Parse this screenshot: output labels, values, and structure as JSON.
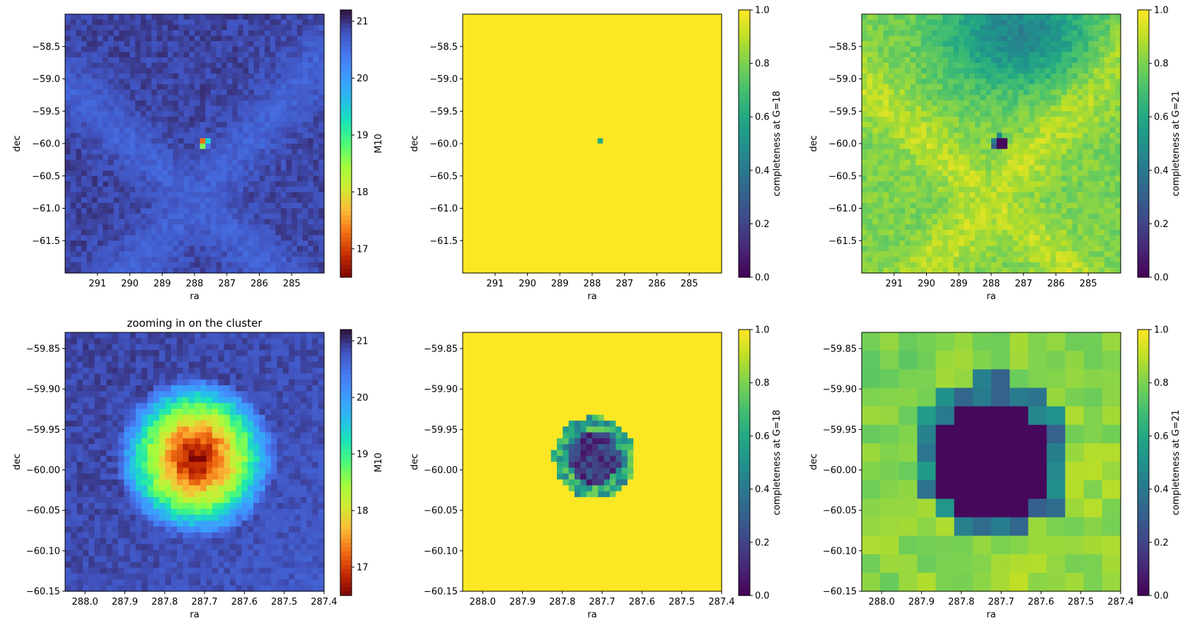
{
  "chart_data": [
    {
      "type": "heatmap",
      "title": "",
      "xlabel": "ra",
      "ylabel": "dec",
      "xlim": [
        292.0,
        284.0
      ],
      "ylim": [
        -62.0,
        -58.0
      ],
      "xticks": [
        {
          "v": 291,
          "label": "291"
        },
        {
          "v": 290,
          "label": "290"
        },
        {
          "v": 289,
          "label": "289"
        },
        {
          "v": 288,
          "label": "288"
        },
        {
          "v": 287,
          "label": "287"
        },
        {
          "v": 286,
          "label": "286"
        },
        {
          "v": 285,
          "label": "285"
        }
      ],
      "yticks": [
        {
          "v": -58.5,
          "label": "−58.5"
        },
        {
          "v": -59.0,
          "label": "−59.0"
        },
        {
          "v": -59.5,
          "label": "−59.5"
        },
        {
          "v": -60.0,
          "label": "−60.0"
        },
        {
          "v": -60.5,
          "label": "−60.5"
        },
        {
          "v": -61.0,
          "label": "−61.0"
        },
        {
          "v": -61.5,
          "label": "−61.5"
        }
      ],
      "colorbar": {
        "label": "M10",
        "colormap": "turbo_r",
        "range": [
          16.5,
          21.2
        ],
        "ticks": [
          {
            "v": 17,
            "label": "17"
          },
          {
            "v": 18,
            "label": "18"
          },
          {
            "v": 19,
            "label": "19"
          },
          {
            "v": 20,
            "label": "20"
          },
          {
            "v": 21,
            "label": "21"
          }
        ]
      },
      "field": {
        "kind": "m10",
        "grid": 48,
        "cluster_ra": 287.72,
        "cluster_dec": -59.985,
        "cluster_radius_deg": 0.06,
        "background": 20.9
      }
    },
    {
      "type": "heatmap",
      "title": "",
      "xlabel": "ra",
      "ylabel": "dec",
      "xlim": [
        292.0,
        284.0
      ],
      "ylim": [
        -62.0,
        -58.0
      ],
      "xticks": [
        {
          "v": 291,
          "label": "291"
        },
        {
          "v": 290,
          "label": "290"
        },
        {
          "v": 289,
          "label": "289"
        },
        {
          "v": 288,
          "label": "288"
        },
        {
          "v": 287,
          "label": "287"
        },
        {
          "v": 286,
          "label": "286"
        },
        {
          "v": 285,
          "label": "285"
        }
      ],
      "yticks": [
        {
          "v": -58.5,
          "label": "−58.5"
        },
        {
          "v": -59.0,
          "label": "−59.0"
        },
        {
          "v": -59.5,
          "label": "−59.5"
        },
        {
          "v": -60.0,
          "label": "−60.0"
        },
        {
          "v": -60.5,
          "label": "−60.5"
        },
        {
          "v": -61.0,
          "label": "−61.0"
        },
        {
          "v": -61.5,
          "label": "−61.5"
        }
      ],
      "colorbar": {
        "label": "completeness at G=18",
        "colormap": "viridis",
        "range": [
          0.0,
          1.0
        ],
        "ticks": [
          {
            "v": 0.0,
            "label": "0.0"
          },
          {
            "v": 0.2,
            "label": "0.2"
          },
          {
            "v": 0.4,
            "label": "0.4"
          },
          {
            "v": 0.6,
            "label": "0.6"
          },
          {
            "v": 0.8,
            "label": "0.8"
          },
          {
            "v": 1.0,
            "label": "1.0"
          }
        ]
      },
      "field": {
        "kind": "g18",
        "grid": 48,
        "cluster_ra": 287.72,
        "cluster_dec": -59.985,
        "cluster_radius_deg": 0.03,
        "background": 1.0
      }
    },
    {
      "type": "heatmap",
      "title": "",
      "xlabel": "ra",
      "ylabel": "dec",
      "xlim": [
        292.0,
        284.0
      ],
      "ylim": [
        -62.0,
        -58.0
      ],
      "xticks": [
        {
          "v": 291,
          "label": "291"
        },
        {
          "v": 290,
          "label": "290"
        },
        {
          "v": 289,
          "label": "289"
        },
        {
          "v": 288,
          "label": "288"
        },
        {
          "v": 287,
          "label": "287"
        },
        {
          "v": 286,
          "label": "286"
        },
        {
          "v": 285,
          "label": "285"
        }
      ],
      "yticks": [
        {
          "v": -58.5,
          "label": "−58.5"
        },
        {
          "v": -59.0,
          "label": "−59.0"
        },
        {
          "v": -59.5,
          "label": "−59.5"
        },
        {
          "v": -60.0,
          "label": "−60.0"
        },
        {
          "v": -60.5,
          "label": "−60.5"
        },
        {
          "v": -61.0,
          "label": "−61.0"
        },
        {
          "v": -61.5,
          "label": "−61.5"
        }
      ],
      "colorbar": {
        "label": "completeness at G=21",
        "colormap": "viridis",
        "range": [
          0.0,
          1.0
        ],
        "ticks": [
          {
            "v": 0.0,
            "label": "0.0"
          },
          {
            "v": 0.2,
            "label": "0.2"
          },
          {
            "v": 0.4,
            "label": "0.4"
          },
          {
            "v": 0.6,
            "label": "0.6"
          },
          {
            "v": 0.8,
            "label": "0.8"
          },
          {
            "v": 1.0,
            "label": "1.0"
          }
        ]
      },
      "field": {
        "kind": "g21",
        "grid": 48,
        "cluster_ra": 287.72,
        "cluster_dec": -59.985,
        "cluster_radius_deg": 0.09,
        "background": 0.85
      }
    },
    {
      "type": "heatmap",
      "title": "zooming in on the cluster",
      "xlabel": "ra",
      "ylabel": "dec",
      "xlim": [
        288.05,
        287.4
      ],
      "ylim": [
        -60.15,
        -59.83
      ],
      "xticks": [
        {
          "v": 288.0,
          "label": "288.0"
        },
        {
          "v": 287.9,
          "label": "287.9"
        },
        {
          "v": 287.8,
          "label": "287.8"
        },
        {
          "v": 287.7,
          "label": "287.7"
        },
        {
          "v": 287.6,
          "label": "287.6"
        },
        {
          "v": 287.5,
          "label": "287.5"
        },
        {
          "v": 287.4,
          "label": "287.4"
        }
      ],
      "yticks": [
        {
          "v": -59.85,
          "label": "−59.85"
        },
        {
          "v": -59.9,
          "label": "−59.90"
        },
        {
          "v": -59.95,
          "label": "−59.95"
        },
        {
          "v": -60.0,
          "label": "−60.00"
        },
        {
          "v": -60.05,
          "label": "−60.05"
        },
        {
          "v": -60.1,
          "label": "−60.10"
        },
        {
          "v": -60.15,
          "label": "−60.15"
        }
      ],
      "colorbar": {
        "label": "M10",
        "colormap": "turbo_r",
        "range": [
          16.5,
          21.2
        ],
        "ticks": [
          {
            "v": 17,
            "label": "17"
          },
          {
            "v": 18,
            "label": "18"
          },
          {
            "v": 19,
            "label": "19"
          },
          {
            "v": 20,
            "label": "20"
          },
          {
            "v": 21,
            "label": "21"
          }
        ]
      },
      "field": {
        "kind": "m10",
        "grid": 44,
        "cluster_ra": 287.72,
        "cluster_dec": -59.985,
        "cluster_radius_deg": 0.065,
        "background": 20.9
      }
    },
    {
      "type": "heatmap",
      "title": "",
      "xlabel": "ra",
      "ylabel": "dec",
      "xlim": [
        288.05,
        287.4
      ],
      "ylim": [
        -60.15,
        -59.83
      ],
      "xticks": [
        {
          "v": 288.0,
          "label": "288.0"
        },
        {
          "v": 287.9,
          "label": "287.9"
        },
        {
          "v": 287.8,
          "label": "287.8"
        },
        {
          "v": 287.7,
          "label": "287.7"
        },
        {
          "v": 287.6,
          "label": "287.6"
        },
        {
          "v": 287.5,
          "label": "287.5"
        },
        {
          "v": 287.4,
          "label": "287.4"
        }
      ],
      "yticks": [
        {
          "v": -59.85,
          "label": "−59.85"
        },
        {
          "v": -59.9,
          "label": "−59.90"
        },
        {
          "v": -59.95,
          "label": "−59.95"
        },
        {
          "v": -60.0,
          "label": "−60.00"
        },
        {
          "v": -60.05,
          "label": "−60.05"
        },
        {
          "v": -60.1,
          "label": "−60.10"
        },
        {
          "v": -60.15,
          "label": "−60.15"
        }
      ],
      "colorbar": {
        "label": "completeness at G=18",
        "colormap": "viridis",
        "range": [
          0.0,
          1.0
        ],
        "ticks": [
          {
            "v": 0.0,
            "label": "0.0"
          },
          {
            "v": 0.2,
            "label": "0.2"
          },
          {
            "v": 0.4,
            "label": "0.4"
          },
          {
            "v": 0.6,
            "label": "0.6"
          },
          {
            "v": 0.8,
            "label": "0.8"
          },
          {
            "v": 1.0,
            "label": "1.0"
          }
        ]
      },
      "field": {
        "kind": "g18",
        "grid": 44,
        "cluster_ra": 287.72,
        "cluster_dec": -59.985,
        "cluster_radius_deg": 0.032,
        "background": 1.0
      }
    },
    {
      "type": "heatmap",
      "title": "",
      "xlabel": "ra",
      "ylabel": "dec",
      "xlim": [
        288.05,
        287.4
      ],
      "ylim": [
        -60.15,
        -59.83
      ],
      "xticks": [
        {
          "v": 288.0,
          "label": "288.0"
        },
        {
          "v": 287.9,
          "label": "287.9"
        },
        {
          "v": 287.8,
          "label": "287.8"
        },
        {
          "v": 287.7,
          "label": "287.7"
        },
        {
          "v": 287.6,
          "label": "287.6"
        },
        {
          "v": 287.5,
          "label": "287.5"
        },
        {
          "v": 287.4,
          "label": "287.4"
        }
      ],
      "yticks": [
        {
          "v": -59.85,
          "label": "−59.85"
        },
        {
          "v": -59.9,
          "label": "−59.90"
        },
        {
          "v": -59.95,
          "label": "−59.95"
        },
        {
          "v": -60.0,
          "label": "−60.00"
        },
        {
          "v": -60.05,
          "label": "−60.05"
        },
        {
          "v": -60.1,
          "label": "−60.10"
        },
        {
          "v": -60.15,
          "label": "−60.15"
        }
      ],
      "colorbar": {
        "label": "completeness at G=21",
        "colormap": "viridis",
        "range": [
          0.0,
          1.0
        ],
        "ticks": [
          {
            "v": 0.0,
            "label": "0.0"
          },
          {
            "v": 0.2,
            "label": "0.2"
          },
          {
            "v": 0.4,
            "label": "0.4"
          },
          {
            "v": 0.6,
            "label": "0.6"
          },
          {
            "v": 0.8,
            "label": "0.8"
          },
          {
            "v": 1.0,
            "label": "1.0"
          }
        ]
      },
      "field": {
        "kind": "g21",
        "grid": 14,
        "cluster_ra": 287.72,
        "cluster_dec": -59.985,
        "cluster_radius_deg": 0.075,
        "background": 0.85
      }
    }
  ]
}
